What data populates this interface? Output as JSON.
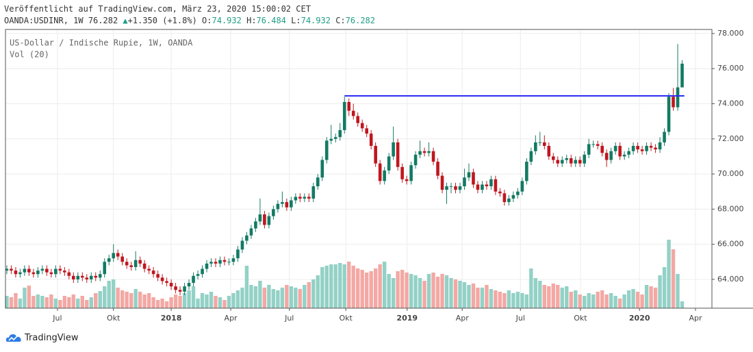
{
  "header": {
    "published": "Veröffentlicht auf TradingView.com, März 23, 2020 15:00:02 CET",
    "symbol": "OANDA:USDINR, 1W",
    "arrow": "▲",
    "change": "+1.350 (+1.8%)",
    "ohlc_labels": [
      "O:",
      "H:",
      "L:",
      "C:"
    ]
  },
  "footer": {
    "brand": "TradingView"
  },
  "chart_data": {
    "type": "candlestick",
    "legend_lines": [
      "US-Dollar / Indische Rupie, 1W, OANDA",
      "Vol (20)"
    ],
    "up_color": "#137a63",
    "down_color": "#c0161f",
    "volume_up_color": "#93d1c6",
    "volume_down_color": "#f3a8a4",
    "grid": true,
    "xlim": [
      -0.3,
      158.7
    ],
    "xticks": [
      {
        "value": 11.4,
        "label": "Jul"
      },
      {
        "value": 24.0,
        "label": "Okt"
      },
      {
        "value": 37.0,
        "label": "2018"
      },
      {
        "value": 50.4,
        "label": "Apr"
      },
      {
        "value": 63.6,
        "label": "Jul"
      },
      {
        "value": 76.3,
        "label": "Okt"
      },
      {
        "value": 90.1,
        "label": "2019"
      },
      {
        "value": 102.5,
        "label": "Apr"
      },
      {
        "value": 115.6,
        "label": "Jul"
      },
      {
        "value": 129.1,
        "label": "Okt"
      },
      {
        "value": 142.4,
        "label": "2020"
      },
      {
        "value": 155.0,
        "label": "Apr"
      }
    ],
    "ylim": [
      62.36,
      78.23
    ],
    "yticks": [
      {
        "value": 64,
        "label": "64.000"
      },
      {
        "value": 66,
        "label": "66.000"
      },
      {
        "value": 68,
        "label": "68.000"
      },
      {
        "value": 70,
        "label": "70.000"
      },
      {
        "value": 72,
        "label": "72.000"
      },
      {
        "value": 74,
        "label": "74.000"
      },
      {
        "value": 76,
        "label": "76.000"
      },
      {
        "value": 78,
        "label": "78.000"
      }
    ],
    "hline": {
      "value": 74.45,
      "x1": 76,
      "x2": 152.5,
      "color": "#2b2cf0"
    },
    "open": [
      64.5,
      64.6,
      64.5,
      64.3,
      64.4,
      64.6,
      64.4,
      64.3,
      64.5,
      64.6,
      64.4,
      64.3,
      64.6,
      64.5,
      64.4,
      64.2,
      64.0,
      64.2,
      64.1,
      64.0,
      64.2,
      64.1,
      64.3,
      65.0,
      65.2,
      65.5,
      65.3,
      65.0,
      64.8,
      64.7,
      65.1,
      64.9,
      64.6,
      64.5,
      64.3,
      64.1,
      63.9,
      63.8,
      63.6,
      63.4,
      63.3,
      63.6,
      63.8,
      64.2,
      64.3,
      64.6,
      64.9,
      65.0,
      64.9,
      65.1,
      65.0,
      65.0,
      65.2,
      65.7,
      66.2,
      66.5,
      66.9,
      67.3,
      67.7,
      67.1,
      67.6,
      68.0,
      68.3,
      68.4,
      68.1,
      68.5,
      68.7,
      68.6,
      68.7,
      68.6,
      69.3,
      69.8,
      70.8,
      71.9,
      72.0,
      72.1,
      72.5,
      74.1,
      73.6,
      73.3,
      72.9,
      72.6,
      72.3,
      71.6,
      70.6,
      69.6,
      70.2,
      71.0,
      71.8,
      70.4,
      69.7,
      69.6,
      70.5,
      71.1,
      71.3,
      71.2,
      71.3,
      70.7,
      69.9,
      69.1,
      69.3,
      69.3,
      69.1,
      69.3,
      69.8,
      70.1,
      69.4,
      69.1,
      69.4,
      69.3,
      69.7,
      69.0,
      68.9,
      68.4,
      68.6,
      68.8,
      69.0,
      69.6,
      70.7,
      71.3,
      71.8,
      71.8,
      71.6,
      71.0,
      70.8,
      70.6,
      70.8,
      70.9,
      70.6,
      70.8,
      70.6,
      71.1,
      71.7,
      71.7,
      71.6,
      71.2,
      70.8,
      71.3,
      71.6,
      71.0,
      71.1,
      71.3,
      71.6,
      71.4,
      71.3,
      71.6,
      71.5,
      71.4,
      71.8,
      72.4,
      74.4,
      73.8,
      74.932
    ],
    "high": [
      64.8,
      64.8,
      64.7,
      64.6,
      64.8,
      64.8,
      64.6,
      64.7,
      64.8,
      64.8,
      64.6,
      64.8,
      64.8,
      64.7,
      64.6,
      64.4,
      64.4,
      64.4,
      64.3,
      64.4,
      64.4,
      64.5,
      65.2,
      65.4,
      66.0,
      65.7,
      65.5,
      65.2,
      65.0,
      65.6,
      65.3,
      65.1,
      64.8,
      64.7,
      64.5,
      64.3,
      64.1,
      64.0,
      63.8,
      63.6,
      63.8,
      64.0,
      64.4,
      64.5,
      64.8,
      65.1,
      65.2,
      65.2,
      65.3,
      65.3,
      65.2,
      65.4,
      65.9,
      66.4,
      66.7,
      67.1,
      67.5,
      68.6,
      67.9,
      67.8,
      68.2,
      68.5,
      69.0,
      68.6,
      68.7,
      68.9,
      68.9,
      68.9,
      68.9,
      69.5,
      70.0,
      71.0,
      72.1,
      72.8,
      72.3,
      72.9,
      74.4,
      74.3,
      74.0,
      73.5,
      73.1,
      72.8,
      72.5,
      71.8,
      70.8,
      70.4,
      71.2,
      72.7,
      72.0,
      70.6,
      69.9,
      70.7,
      71.3,
      71.9,
      71.5,
      71.8,
      71.5,
      70.9,
      70.1,
      69.5,
      69.5,
      69.5,
      69.5,
      70.3,
      70.6,
      70.3,
      69.6,
      69.6,
      69.6,
      69.9,
      69.9,
      69.2,
      69.1,
      68.8,
      69.0,
      69.2,
      69.8,
      70.9,
      71.5,
      72.2,
      72.4,
      72.2,
      71.8,
      71.2,
      71.0,
      71.0,
      71.1,
      71.1,
      71.0,
      71.0,
      71.3,
      72.0,
      71.9,
      71.9,
      71.8,
      71.4,
      71.5,
      71.8,
      71.8,
      71.3,
      71.5,
      71.8,
      71.8,
      71.6,
      71.8,
      71.8,
      71.7,
      72.1,
      72.6,
      74.6,
      74.9,
      77.4,
      76.484
    ],
    "low": [
      64.3,
      64.3,
      64.1,
      64.1,
      64.2,
      64.2,
      64.1,
      64.1,
      64.3,
      64.2,
      64.1,
      64.1,
      64.3,
      64.2,
      64.0,
      63.8,
      63.8,
      63.9,
      63.8,
      63.8,
      63.9,
      63.9,
      64.1,
      64.8,
      65.0,
      65.1,
      64.8,
      64.6,
      64.5,
      64.5,
      64.7,
      64.4,
      64.3,
      64.1,
      63.9,
      63.7,
      63.6,
      63.4,
      63.2,
      63.1,
      63.1,
      63.4,
      63.6,
      64.0,
      64.1,
      64.4,
      64.7,
      64.7,
      64.7,
      64.8,
      64.8,
      64.8,
      65.0,
      65.5,
      66.0,
      66.3,
      66.7,
      67.1,
      66.9,
      66.9,
      67.4,
      67.8,
      68.1,
      67.9,
      67.9,
      68.3,
      68.4,
      68.4,
      68.4,
      68.4,
      69.1,
      69.6,
      70.6,
      71.7,
      71.8,
      71.9,
      72.3,
      73.3,
      73.1,
      72.7,
      72.4,
      72.1,
      71.4,
      70.4,
      69.4,
      69.4,
      70.0,
      70.8,
      70.2,
      69.5,
      69.4,
      69.4,
      70.3,
      70.9,
      71.0,
      71.0,
      70.5,
      69.7,
      68.9,
      68.3,
      68.9,
      68.9,
      68.9,
      69.1,
      69.6,
      69.2,
      68.9,
      68.9,
      69.1,
      69.1,
      68.8,
      68.7,
      68.2,
      68.2,
      68.4,
      68.6,
      68.8,
      69.4,
      70.5,
      71.1,
      71.6,
      71.4,
      70.8,
      70.6,
      70.4,
      70.4,
      70.6,
      70.4,
      70.4,
      70.4,
      70.4,
      70.9,
      71.5,
      71.4,
      71.0,
      70.4,
      70.6,
      71.1,
      70.8,
      70.8,
      70.9,
      71.1,
      71.2,
      71.1,
      71.1,
      71.3,
      71.2,
      71.2,
      71.6,
      72.2,
      73.6,
      73.6,
      74.932
    ],
    "close": [
      64.6,
      64.5,
      64.3,
      64.4,
      64.6,
      64.4,
      64.3,
      64.5,
      64.6,
      64.4,
      64.3,
      64.6,
      64.5,
      64.4,
      64.2,
      64.0,
      64.2,
      64.1,
      64.0,
      64.2,
      64.1,
      64.3,
      65.0,
      65.2,
      65.5,
      65.3,
      65.0,
      64.8,
      64.7,
      65.1,
      64.9,
      64.6,
      64.5,
      64.3,
      64.1,
      63.9,
      63.8,
      63.6,
      63.4,
      63.3,
      63.6,
      63.8,
      64.2,
      64.3,
      64.6,
      64.9,
      65.0,
      64.9,
      65.1,
      65.0,
      65.0,
      65.2,
      65.7,
      66.2,
      66.5,
      66.9,
      67.3,
      67.7,
      67.1,
      67.6,
      68.0,
      68.3,
      68.4,
      68.1,
      68.5,
      68.7,
      68.6,
      68.7,
      68.6,
      69.3,
      69.8,
      70.8,
      71.9,
      72.0,
      72.1,
      72.5,
      74.1,
      73.6,
      73.3,
      72.9,
      72.6,
      72.3,
      71.6,
      70.6,
      69.6,
      70.2,
      71.0,
      71.8,
      70.4,
      69.7,
      69.6,
      70.5,
      71.1,
      71.3,
      71.2,
      71.3,
      70.7,
      69.9,
      69.1,
      69.3,
      69.3,
      69.1,
      69.3,
      69.8,
      70.1,
      69.4,
      69.1,
      69.4,
      69.3,
      69.7,
      69.0,
      68.9,
      68.4,
      68.6,
      68.8,
      69.0,
      69.6,
      70.7,
      71.3,
      71.8,
      71.8,
      71.6,
      71.0,
      70.8,
      70.6,
      70.8,
      70.9,
      70.6,
      70.8,
      70.6,
      71.1,
      71.7,
      71.7,
      71.6,
      71.2,
      70.8,
      71.3,
      71.6,
      71.0,
      71.1,
      71.3,
      71.6,
      71.4,
      71.3,
      71.6,
      71.5,
      71.4,
      71.8,
      72.4,
      74.4,
      73.8,
      74.932,
      76.282
    ],
    "volume": [
      18,
      16,
      22,
      14,
      30,
      33,
      18,
      20,
      18,
      16,
      20,
      14,
      12,
      18,
      16,
      20,
      14,
      18,
      12,
      16,
      22,
      25,
      32,
      40,
      42,
      30,
      26,
      24,
      22,
      28,
      24,
      20,
      22,
      16,
      12,
      14,
      10,
      16,
      20,
      18,
      22,
      26,
      32,
      14,
      22,
      20,
      24,
      18,
      16,
      12,
      18,
      22,
      26,
      30,
      62,
      34,
      32,
      40,
      30,
      34,
      28,
      26,
      30,
      34,
      32,
      30,
      28,
      34,
      38,
      42,
      48,
      60,
      62,
      64,
      64,
      66,
      64,
      68,
      62,
      58,
      56,
      52,
      54,
      58,
      64,
      68,
      50,
      44,
      54,
      56,
      52,
      50,
      48,
      44,
      40,
      50,
      52,
      46,
      50,
      48,
      44,
      42,
      40,
      38,
      34,
      36,
      30,
      30,
      34,
      28,
      26,
      24,
      22,
      26,
      22,
      24,
      22,
      20,
      58,
      44,
      40,
      34,
      32,
      36,
      34,
      30,
      32,
      24,
      26,
      20,
      18,
      22,
      20,
      24,
      26,
      20,
      22,
      18,
      14,
      20,
      26,
      28,
      24,
      20,
      34,
      32,
      30,
      48,
      60,
      100,
      86,
      50,
      10
    ]
  }
}
